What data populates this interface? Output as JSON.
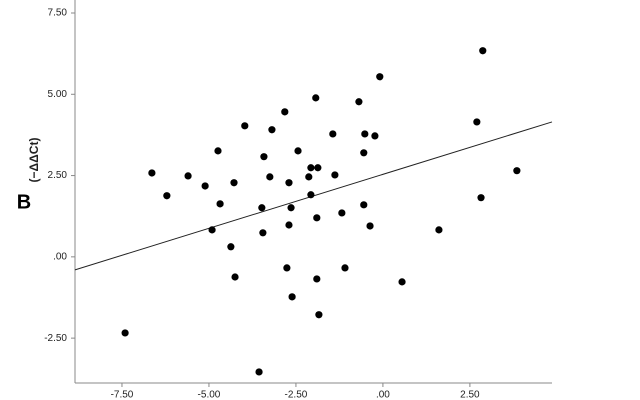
{
  "chart_data": {
    "type": "scatter",
    "y_label": "(−ΔΔCt)",
    "panel_label": "B",
    "color": "#000000",
    "x": [
      -7.41,
      -6.64,
      -6.21,
      -5.6,
      -5.11,
      -4.91,
      -4.74,
      -4.68,
      -4.37,
      -4.28,
      -4.25,
      -3.97,
      -3.48,
      -3.45,
      -3.42,
      -3.25,
      -3.19,
      -3.56,
      -2.82,
      -2.76,
      -2.7,
      -2.7,
      -2.64,
      -2.61,
      -2.44,
      -2.13,
      -2.07,
      -2.07,
      -1.93,
      -1.9,
      -1.9,
      -1.87,
      -1.84,
      -1.44,
      -1.38,
      -1.18,
      -1.09,
      -0.69,
      -0.55,
      -0.52,
      -0.55,
      -0.37,
      -0.23,
      -0.09,
      0.55,
      1.61,
      2.7,
      2.82,
      2.87,
      3.85
    ],
    "values": [
      -2.34,
      2.58,
      1.88,
      2.49,
      2.18,
      0.83,
      3.26,
      1.63,
      0.31,
      2.28,
      -0.62,
      4.03,
      1.51,
      0.74,
      3.08,
      2.46,
      3.91,
      -3.54,
      4.46,
      -0.34,
      2.28,
      0.98,
      1.51,
      -1.23,
      3.26,
      2.46,
      2.74,
      1.91,
      4.89,
      1.2,
      -0.68,
      2.74,
      -1.78,
      3.78,
      2.52,
      1.35,
      -0.34,
      4.77,
      3.2,
      3.78,
      1.6,
      0.95,
      3.72,
      5.54,
      -0.77,
      0.83,
      4.15,
      1.82,
      6.34,
      2.65
    ],
    "fit_line": {
      "x": [
        -8.85,
        4.86
      ],
      "y": [
        -0.4,
        4.15
      ]
    },
    "xlim": [
      -8.85,
      4.86
    ],
    "ylim": [
      -3.88,
      7.9
    ],
    "xticks": [
      {
        "value": -7.5,
        "label": "-7.50"
      },
      {
        "value": -5,
        "label": "-5.00"
      },
      {
        "value": -2.5,
        "label": "-2.50"
      },
      {
        "value": 0,
        "label": ".00"
      },
      {
        "value": 2.5,
        "label": "2.50"
      }
    ],
    "yticks": [
      {
        "value": -2.5,
        "label": "-2.50"
      },
      {
        "value": 0,
        "label": ".00"
      },
      {
        "value": 2.5,
        "label": "2.50"
      },
      {
        "value": 5,
        "label": "5.00"
      },
      {
        "value": 7.5,
        "label": "7.50"
      }
    ]
  }
}
